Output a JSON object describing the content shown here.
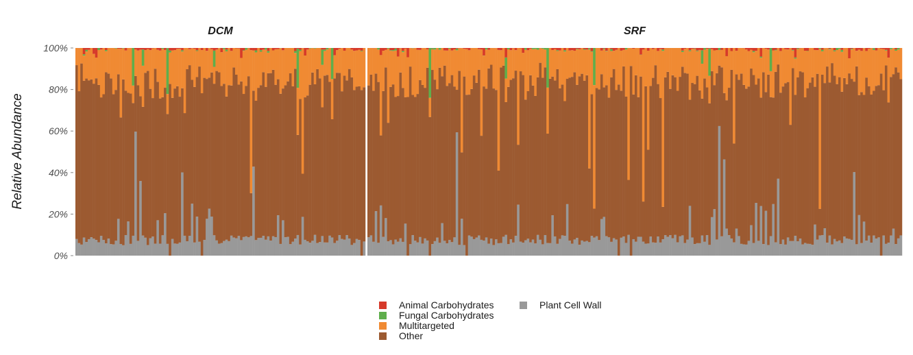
{
  "chart_data": {
    "type": "bar",
    "stacked": true,
    "normalized": true,
    "ylabel": "Relative Abundance",
    "xlabel": "",
    "ylim": [
      0,
      1
    ],
    "yticks": [
      "0%",
      "20%",
      "40%",
      "60%",
      "80%",
      "100%"
    ],
    "facets": [
      {
        "title": "DCM",
        "n_samples": 118
      },
      {
        "title": "SRF",
        "n_samples": 218
      }
    ],
    "series": [
      {
        "name": "Plant Cell Wall",
        "color": "#999999",
        "typical_share": 0.08
      },
      {
        "name": "Other",
        "color": "#9C5A31",
        "typical_share": 0.72
      },
      {
        "name": "Multitargeted",
        "color": "#F08A33",
        "typical_share": 0.17
      },
      {
        "name": "Fungal Carbohydrates",
        "color": "#5FAE4C",
        "typical_share": 0.01
      },
      {
        "name": "Animal Carbohydrates",
        "color": "#D63A2A",
        "typical_share": 0.01
      }
    ],
    "legend_position": "bottom",
    "grid": false
  },
  "legend": {
    "col1": [
      "Animal Carbohydrates",
      "Fungal Carbohydrates",
      "Multitargeted",
      "Other"
    ],
    "col2": [
      "Plant Cell Wall"
    ]
  }
}
